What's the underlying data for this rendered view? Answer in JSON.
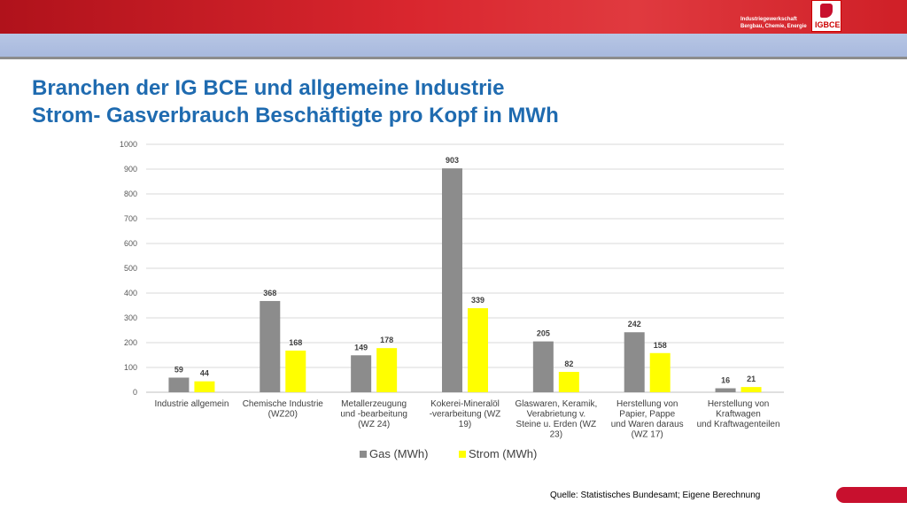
{
  "header": {
    "org_line1": "Industriegewerkschaft",
    "org_line2": "Bergbau, Chemie, Energie",
    "logo_text": "IGBCE"
  },
  "slide": {
    "title_line1": "Branchen der IG BCE und allgemeine Industrie",
    "title_line2": "Strom- Gasverbrauch Beschäftigte pro Kopf in MWh",
    "source": "Quelle: Statistisches Bundesamt; Eigene Berechnung"
  },
  "colors": {
    "gas": "#8c8c8c",
    "strom": "#ffff00",
    "title": "#1f6bb0",
    "brand_red": "#c8102e"
  },
  "chart_data": {
    "type": "bar",
    "categories": [
      [
        "Industrie allgemein"
      ],
      [
        "Chemische Industrie",
        "(WZ20)"
      ],
      [
        "Metallerzeugung",
        "und -bearbeitung",
        "(WZ 24)"
      ],
      [
        "Kokerei-Mineralöl",
        "-verarbeitung (WZ",
        "19)"
      ],
      [
        "Glaswaren, Keramik,",
        "Verabrietung v.",
        "Steine u. Erden (WZ",
        "23)"
      ],
      [
        "Herstellung von",
        "Papier, Pappe",
        "und Waren daraus",
        "(WZ 17)"
      ],
      [
        "Herstellung von",
        "Kraftwagen",
        "und Kraftwagenteilen"
      ]
    ],
    "series": [
      {
        "name": "Gas (MWh)",
        "values": [
          59,
          368,
          149,
          903,
          205,
          242,
          16
        ]
      },
      {
        "name": "Strom (MWh)",
        "values": [
          44,
          168,
          178,
          339,
          82,
          158,
          21
        ]
      }
    ],
    "ylim": [
      0,
      1000
    ],
    "yticks": [
      0,
      100,
      200,
      300,
      400,
      500,
      600,
      700,
      800,
      900,
      1000
    ],
    "grid": true,
    "legend": "bottom"
  }
}
